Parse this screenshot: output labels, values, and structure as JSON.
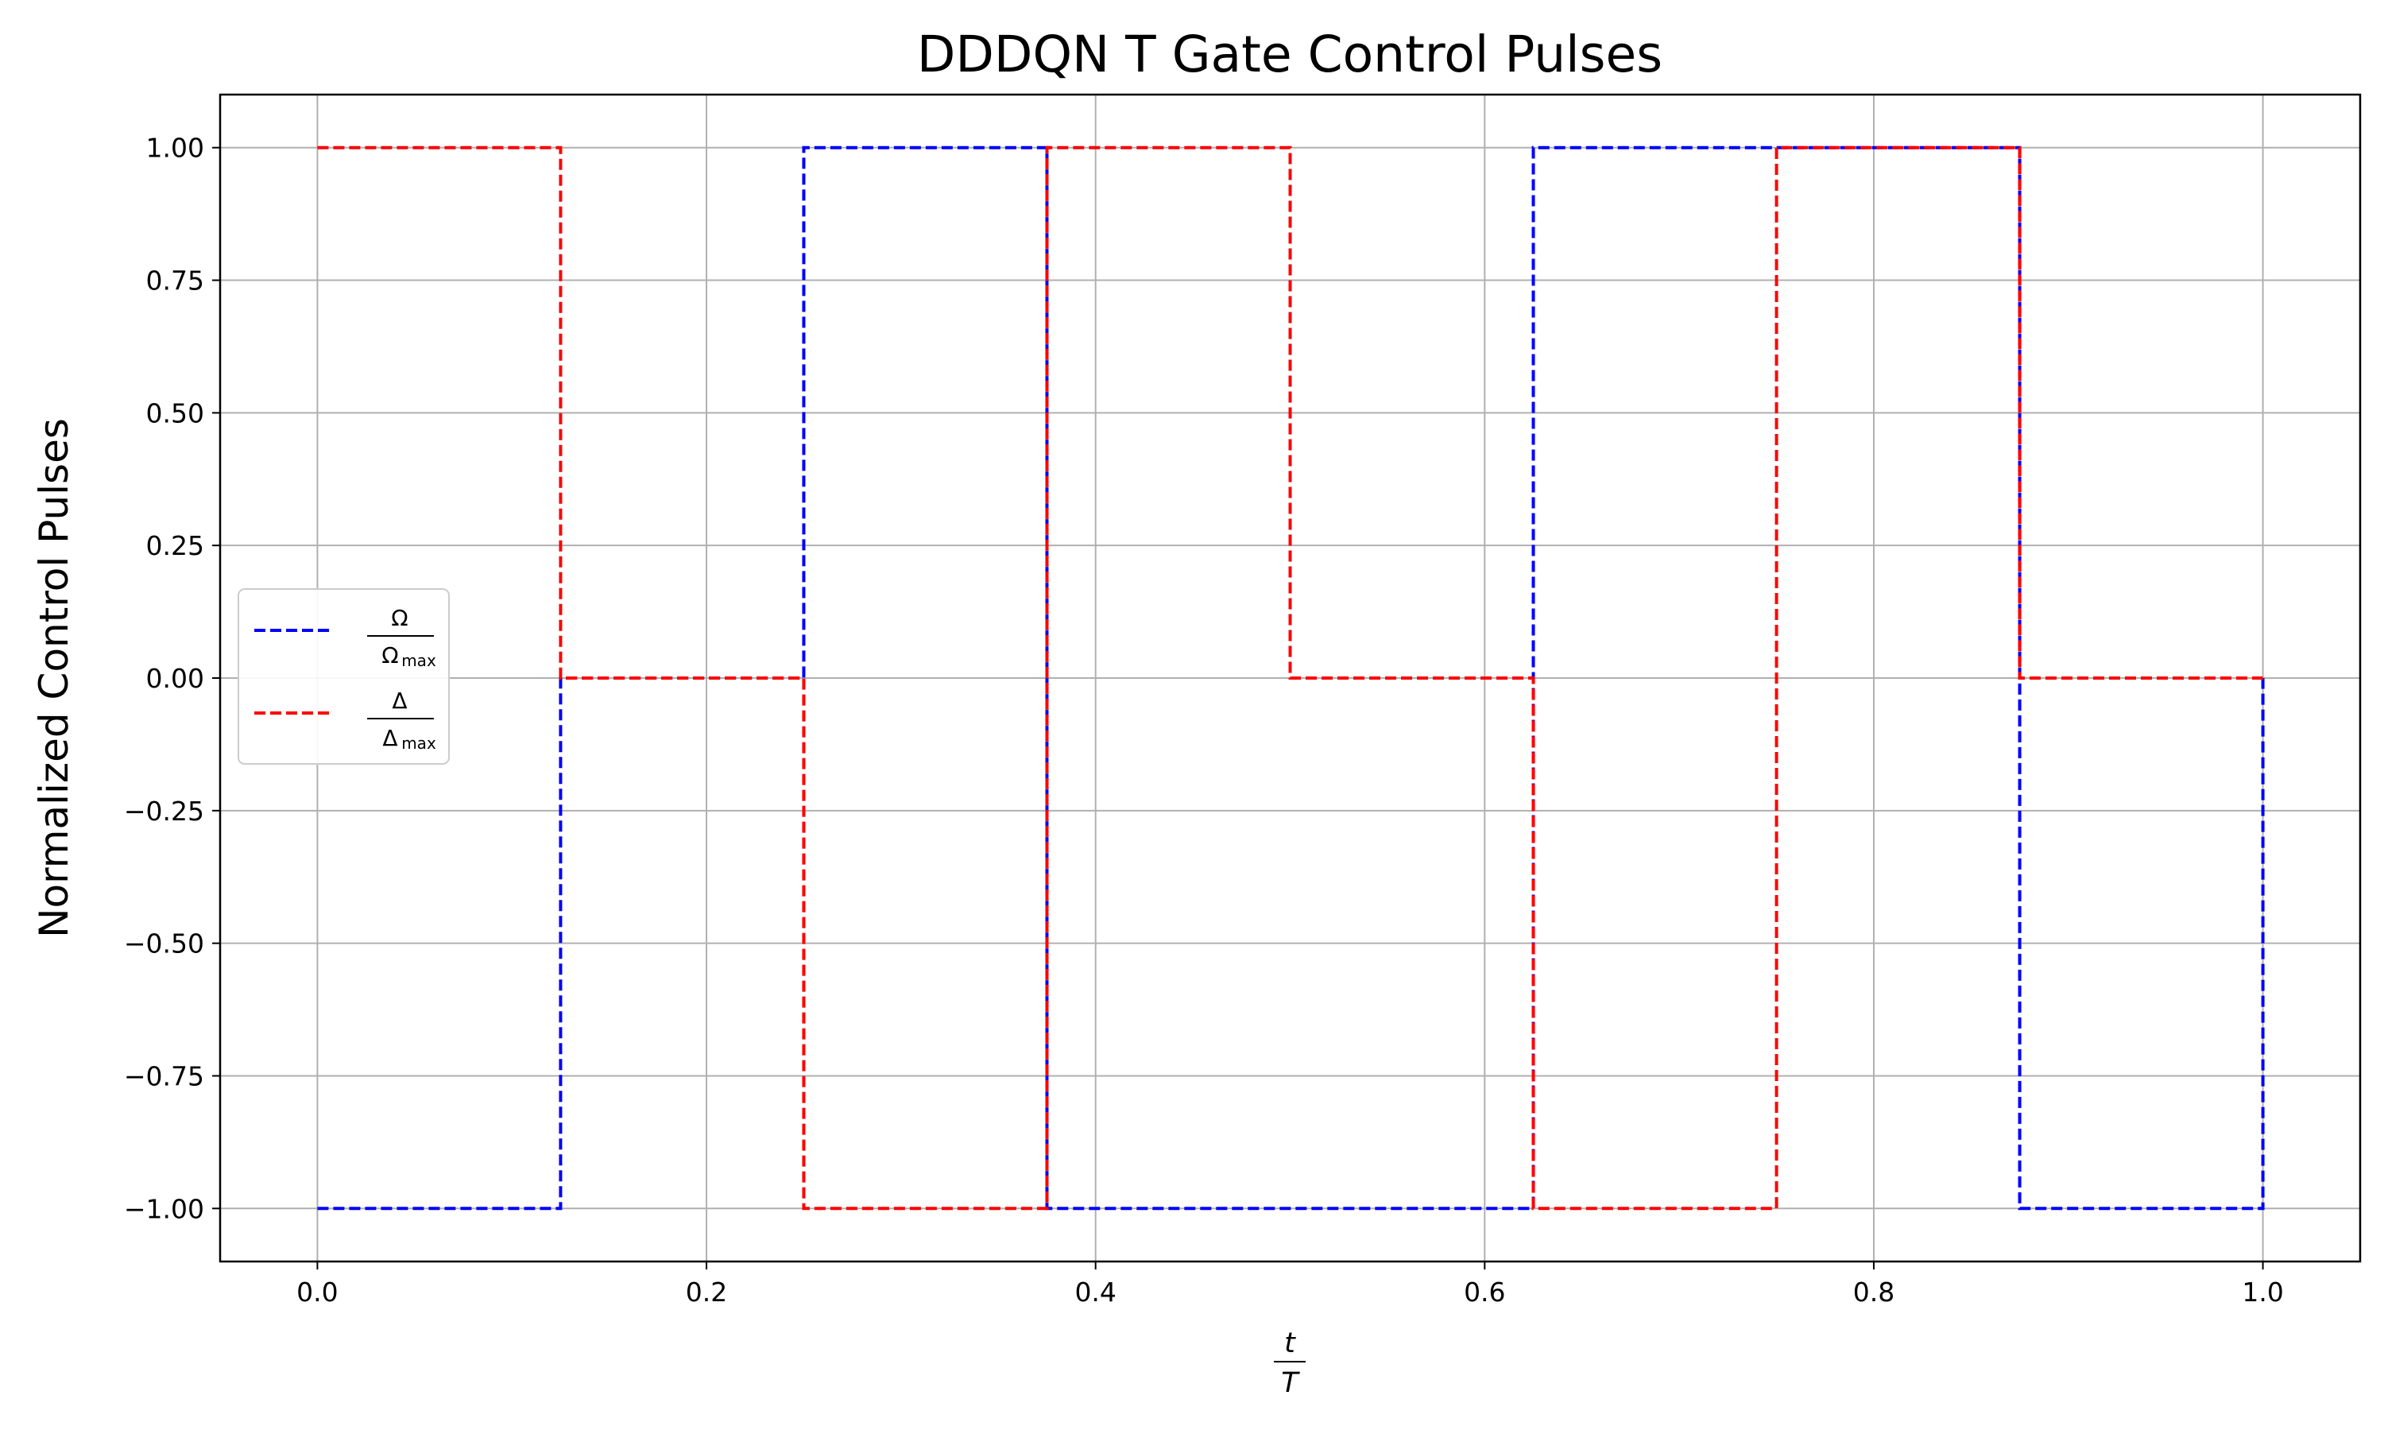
{
  "chart_data": {
    "type": "line",
    "title": "DDDQN T Gate Control Pulses",
    "xlabel": {
      "numerator": "t",
      "denominator": "T"
    },
    "ylabel": "Normalized Control Pulses",
    "xlim": [
      -0.05,
      1.05
    ],
    "ylim": [
      -1.1,
      1.1
    ],
    "xticks": [
      0.0,
      0.2,
      0.4,
      0.6,
      0.8,
      1.0
    ],
    "xtick_labels": [
      "0.0",
      "0.2",
      "0.4",
      "0.6",
      "0.8",
      "1.0"
    ],
    "yticks": [
      1.0,
      0.75,
      0.5,
      0.25,
      0.0,
      -0.25,
      -0.5,
      -0.75,
      -1.0
    ],
    "ytick_labels": [
      "1.00",
      "0.75",
      "0.50",
      "0.25",
      "0.00",
      "−0.25",
      "−0.50",
      "−0.75",
      "−1.00"
    ],
    "grid": true,
    "legend_position": "center-left",
    "series": [
      {
        "name": "Ω/Ω_max",
        "legend_num": "Ω",
        "legend_den": "Ω",
        "legend_sub": "max",
        "color": "#0000ff",
        "style": "dashed",
        "step_edges": [
          0.0,
          0.125,
          0.25,
          0.375,
          0.5,
          0.625,
          0.75,
          0.875,
          1.0
        ],
        "values": [
          -1,
          0,
          1,
          -1,
          -1,
          1,
          1,
          -1
        ]
      },
      {
        "name": "Δ/Δ_max",
        "legend_num": "Δ",
        "legend_den": "Δ",
        "legend_sub": "max",
        "color": "#ff0000",
        "style": "dashed",
        "step_edges": [
          0.0,
          0.125,
          0.25,
          0.375,
          0.5,
          0.625,
          0.75,
          0.875,
          1.0
        ],
        "values": [
          1,
          0,
          -1,
          1,
          0,
          -1,
          1,
          0
        ]
      }
    ]
  }
}
